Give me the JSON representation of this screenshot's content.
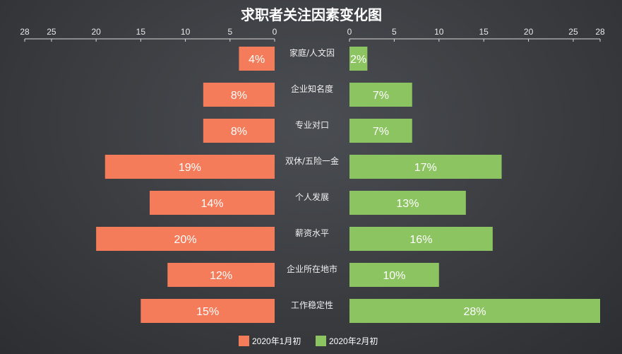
{
  "chart_data": {
    "type": "bar",
    "title": "求职者关注因素变化图",
    "categories": [
      "家庭/人文因",
      "企业知名度",
      "专业对口",
      "双休/五险一金",
      "个人发展",
      "薪资水平",
      "企业所在地市",
      "工作稳定性"
    ],
    "series": [
      {
        "name": "2020年1月初",
        "values": [
          4,
          8,
          8,
          19,
          14,
          20,
          12,
          15
        ],
        "labels": [
          "4%",
          "8%",
          "8%",
          "19%",
          "14%",
          "20%",
          "12%",
          "15%"
        ],
        "color": "#f47c5a"
      },
      {
        "name": "2020年2月初",
        "values": [
          2,
          7,
          7,
          17,
          13,
          16,
          10,
          28
        ],
        "labels": [
          "2%",
          "7%",
          "7%",
          "17%",
          "13%",
          "16%",
          "10%",
          "28%"
        ],
        "color": "#8dc462"
      }
    ],
    "left_axis": {
      "ticks": [
        28,
        25,
        20,
        15,
        10,
        5,
        0
      ],
      "range": [
        0,
        28
      ],
      "reversed": true
    },
    "right_axis": {
      "ticks": [
        0,
        5,
        10,
        15,
        20,
        25,
        28
      ],
      "range": [
        0,
        28
      ]
    },
    "legend_position": "bottom",
    "grid": false
  }
}
